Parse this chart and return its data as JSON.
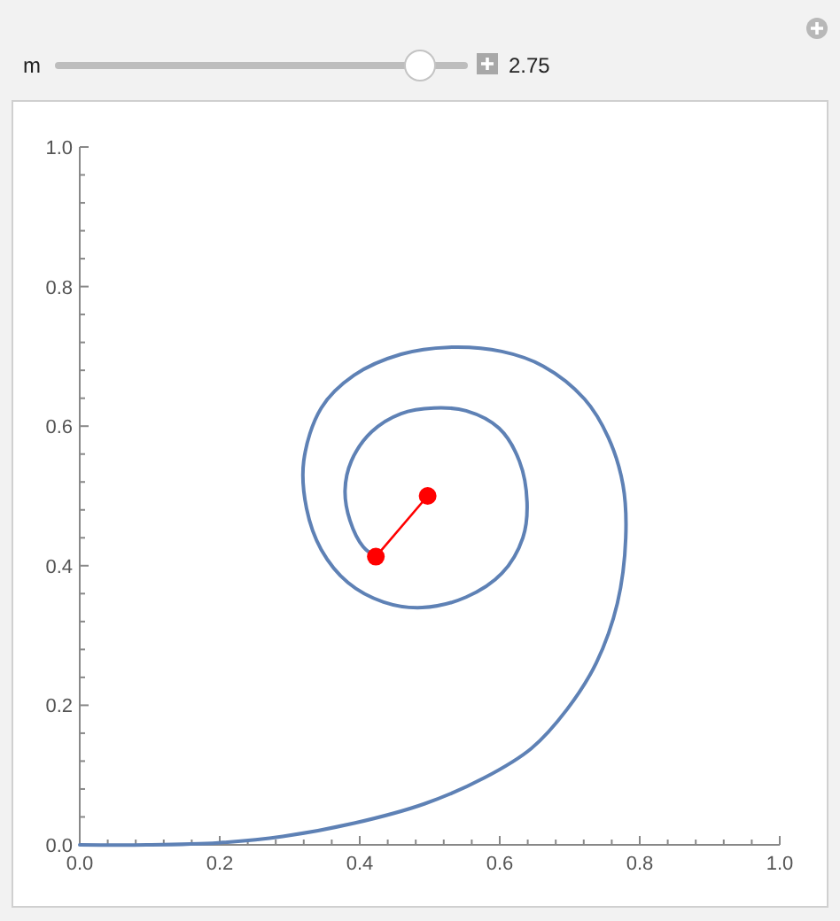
{
  "chart_data": {
    "type": "line",
    "annotations": [
      "m",
      "2.75"
    ],
    "xlim": [
      0,
      1
    ],
    "ylim": [
      0,
      1
    ],
    "xticks": [
      {
        "value": 0,
        "label": "0.0"
      },
      {
        "value": 0.04,
        "label": null
      },
      {
        "value": 0.08,
        "label": null
      },
      {
        "value": 0.12,
        "label": null
      },
      {
        "value": 0.16,
        "label": null
      },
      0.2,
      {
        "value": 0.24,
        "label": null
      },
      {
        "value": 0.28,
        "label": null
      },
      {
        "value": 0.32,
        "label": null
      },
      {
        "value": 0.36,
        "label": null
      },
      0.4,
      {
        "value": 0.44,
        "label": null
      },
      {
        "value": 0.48,
        "label": null
      },
      {
        "value": 0.52,
        "label": null
      },
      {
        "value": 0.56,
        "label": null
      },
      0.6,
      {
        "value": 0.64,
        "label": null
      },
      {
        "value": 0.68,
        "label": null
      },
      {
        "value": 0.72,
        "label": null
      },
      {
        "value": 0.76,
        "label": null
      },
      0.8,
      {
        "value": 0.84,
        "label": null
      },
      {
        "value": 0.88,
        "label": null
      },
      {
        "value": 0.92,
        "label": null
      },
      {
        "value": 0.96,
        "label": null
      },
      {
        "value": 1,
        "label": "1.0"
      }
    ],
    "yticks": [
      {
        "value": 0,
        "label": "0.0"
      },
      {
        "value": 0.04,
        "label": null
      },
      {
        "value": 0.08,
        "label": null
      },
      {
        "value": 0.12,
        "label": null
      },
      {
        "value": 0.16,
        "label": null
      },
      0.2,
      {
        "value": 0.24,
        "label": null
      },
      {
        "value": 0.28,
        "label": null
      },
      {
        "value": 0.32,
        "label": null
      },
      {
        "value": 0.36,
        "label": null
      },
      0.4,
      {
        "value": 0.44,
        "label": null
      },
      {
        "value": 0.48,
        "label": null
      },
      {
        "value": 0.52,
        "label": null
      },
      {
        "value": 0.56,
        "label": null
      },
      0.6,
      {
        "value": 0.64,
        "label": null
      },
      {
        "value": 0.68,
        "label": null
      },
      {
        "value": 0.72,
        "label": null
      },
      {
        "value": 0.76,
        "label": null
      },
      0.8,
      {
        "value": 0.84,
        "label": null
      },
      {
        "value": 0.88,
        "label": null
      },
      {
        "value": 0.92,
        "label": null
      },
      {
        "value": 0.96,
        "label": null
      },
      {
        "value": 1,
        "label": "1.0"
      }
    ],
    "grid": false,
    "series": [
      {
        "color": "#5e81b5",
        "marker": "none",
        "x": [
          0,
          0.096,
          0.198,
          0.29,
          0.392,
          0.493,
          0.578,
          0.645,
          0.696,
          0.738,
          0.768,
          0.78,
          0.776,
          0.755,
          0.721,
          0.662,
          0.603,
          0.527,
          0.459,
          0.392,
          0.345,
          0.32,
          0.324,
          0.345,
          0.383,
          0.434,
          0.489,
          0.552,
          0.603,
          0.633,
          0.639,
          0.628,
          0.599,
          0.552,
          0.506,
          0.459,
          0.417,
          0.388,
          0.379,
          0.386,
          0.405,
          0.423
        ],
        "values": [
          0,
          0,
          0.003,
          0.012,
          0.031,
          0.059,
          0.096,
          0.138,
          0.194,
          0.261,
          0.346,
          0.44,
          0.516,
          0.584,
          0.639,
          0.686,
          0.707,
          0.713,
          0.703,
          0.673,
          0.626,
          0.55,
          0.482,
          0.423,
          0.376,
          0.348,
          0.34,
          0.355,
          0.389,
          0.44,
          0.491,
          0.55,
          0.597,
          0.622,
          0.626,
          0.618,
          0.592,
          0.55,
          0.508,
          0.465,
          0.427,
          0.413
        ]
      },
      {
        "color": "#ff0000",
        "marker": "circle",
        "x": [
          0.423,
          0.497
        ],
        "values": [
          0.413,
          0.5
        ]
      }
    ]
  }
}
